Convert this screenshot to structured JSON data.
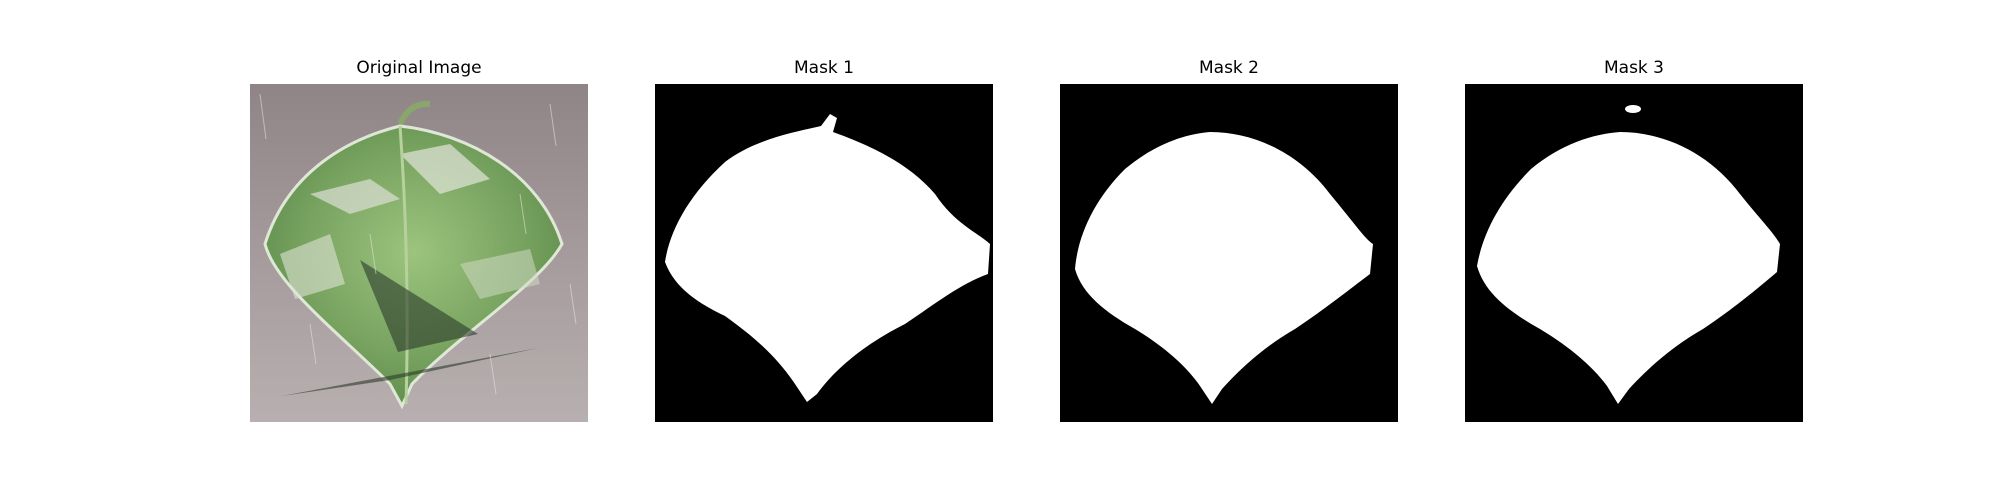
{
  "panels": [
    {
      "title": "Original Image"
    },
    {
      "title": "Mask 1"
    },
    {
      "title": "Mask 2"
    },
    {
      "title": "Mask 3"
    }
  ],
  "colors": {
    "mask_background": "#000000",
    "mask_foreground": "#ffffff",
    "leaf_green": "#7fa867",
    "surface": "#a89ea0"
  }
}
